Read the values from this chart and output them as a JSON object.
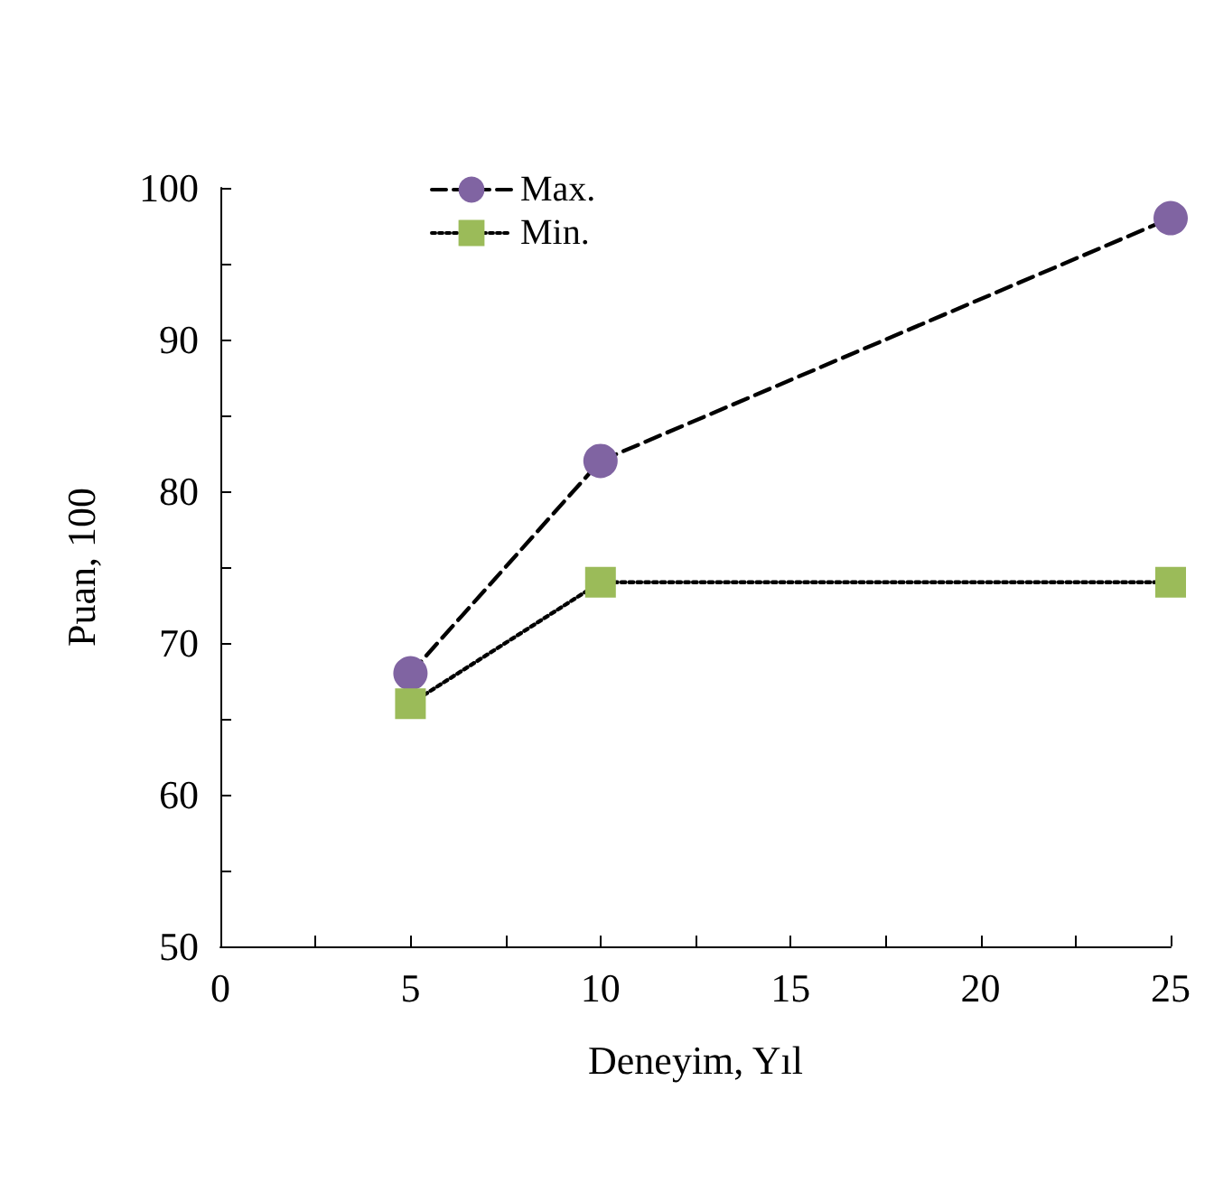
{
  "chart_data": {
    "type": "line",
    "xlabel": "Deneyim, Yıl",
    "ylabel": "Puan, 100",
    "xlim": [
      0,
      25
    ],
    "xticks": [
      0,
      {
        "value": 2.5,
        "label": null
      },
      5,
      {
        "value": 7.5,
        "label": null
      },
      10,
      {
        "value": 12.5,
        "label": null
      },
      15,
      {
        "value": 17.5,
        "label": null
      },
      20,
      {
        "value": 22.5,
        "label": null
      },
      25
    ],
    "ylim": [
      50,
      100
    ],
    "yticks": [
      50,
      {
        "value": 55,
        "label": null
      },
      60,
      {
        "value": 65,
        "label": null
      },
      70,
      {
        "value": 75,
        "label": null
      },
      80,
      {
        "value": 85,
        "label": null
      },
      90,
      {
        "value": 95,
        "label": null
      },
      100
    ],
    "x": [
      5,
      10,
      25
    ],
    "series": [
      {
        "name": "Max.",
        "color": "#8064a2",
        "marker": "circle",
        "line_style": "dashed",
        "values": [
          68,
          82,
          98
        ]
      },
      {
        "name": "Min.",
        "color": "#9bbb59",
        "marker": "square",
        "line_style": "dotted",
        "values": [
          66,
          74,
          74
        ]
      }
    ],
    "grid": false,
    "legend": "top left"
  }
}
